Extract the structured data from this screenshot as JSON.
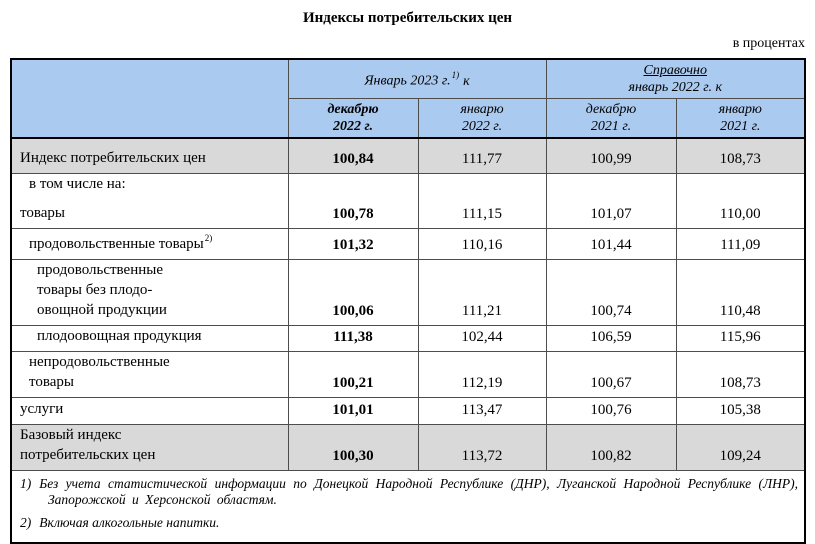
{
  "title": "Индексы потребительских цен",
  "units_label": "в процентах",
  "colors": {
    "header_blue": "#abcaef",
    "row_gray": "#d9d9d9"
  },
  "table": {
    "header": {
      "group_current": {
        "text": "Январь 2023 г.",
        "sup": "1)",
        "suffix": "к"
      },
      "group_reference": {
        "line1": "Справочно",
        "line2": "январь 2022 г. к"
      },
      "subcolumns": [
        {
          "line1": "декабрю",
          "line2": "2022 г."
        },
        {
          "line1": "январю",
          "line2": "2022 г."
        },
        {
          "line1": "декабрю",
          "line2": "2021 г."
        },
        {
          "line1": "январю",
          "line2": "2021 г."
        }
      ]
    },
    "rows": [
      {
        "label_lines": [
          {
            "text": "Индекс потребительских цен",
            "indent": 0
          }
        ],
        "values": [
          "100,84",
          "111,77",
          "100,99",
          "108,73"
        ],
        "emphasis": true
      },
      {
        "label_lines": [
          {
            "text": "в том числе на:",
            "indent": 1
          },
          {
            "text": "товары",
            "indent": 0
          }
        ],
        "values": [
          "100,78",
          "111,15",
          "101,07",
          "110,00"
        ],
        "emphasis": false
      },
      {
        "label_lines": [
          {
            "text": "продовольственные товары",
            "indent": 1,
            "sup": "2)"
          }
        ],
        "values": [
          "101,32",
          "110,16",
          "101,44",
          "111,09"
        ],
        "emphasis": false
      },
      {
        "label_lines": [
          {
            "text": "продовольственные",
            "indent": 2
          },
          {
            "text": "товары без плодо-",
            "indent": 2
          },
          {
            "text": "овощной продукции",
            "indent": 2
          }
        ],
        "values": [
          "100,06",
          "111,21",
          "100,74",
          "110,48"
        ],
        "emphasis": false
      },
      {
        "label_lines": [
          {
            "text": "плодоовощная продукция",
            "indent": 2
          }
        ],
        "values": [
          "111,38",
          "102,44",
          "106,59",
          "115,96"
        ],
        "emphasis": false
      },
      {
        "label_lines": [
          {
            "text": "непродовольственные",
            "indent": 1
          },
          {
            "text": "товары",
            "indent": 1
          }
        ],
        "values": [
          "100,21",
          "112,19",
          "100,67",
          "108,73"
        ],
        "emphasis": false
      },
      {
        "label_lines": [
          {
            "text": "услуги",
            "indent": 0
          }
        ],
        "values": [
          "101,01",
          "113,47",
          "100,76",
          "105,38"
        ],
        "emphasis": false
      },
      {
        "label_lines": [
          {
            "text": "Базовый индекс",
            "indent": 0
          },
          {
            "text": "потребительских цен",
            "indent": 0
          }
        ],
        "values": [
          "100,30",
          "113,72",
          "100,82",
          "109,24"
        ],
        "emphasis": true
      }
    ],
    "footnotes": [
      {
        "marker": "1)",
        "text": "Без учета статистической информации по Донецкой Народной Республике (ДНР), Луганской Народной Республике (ЛНР), Запорожской и Херсонской областям."
      },
      {
        "marker": "2)",
        "text": "Включая алкогольные напитки."
      }
    ]
  }
}
